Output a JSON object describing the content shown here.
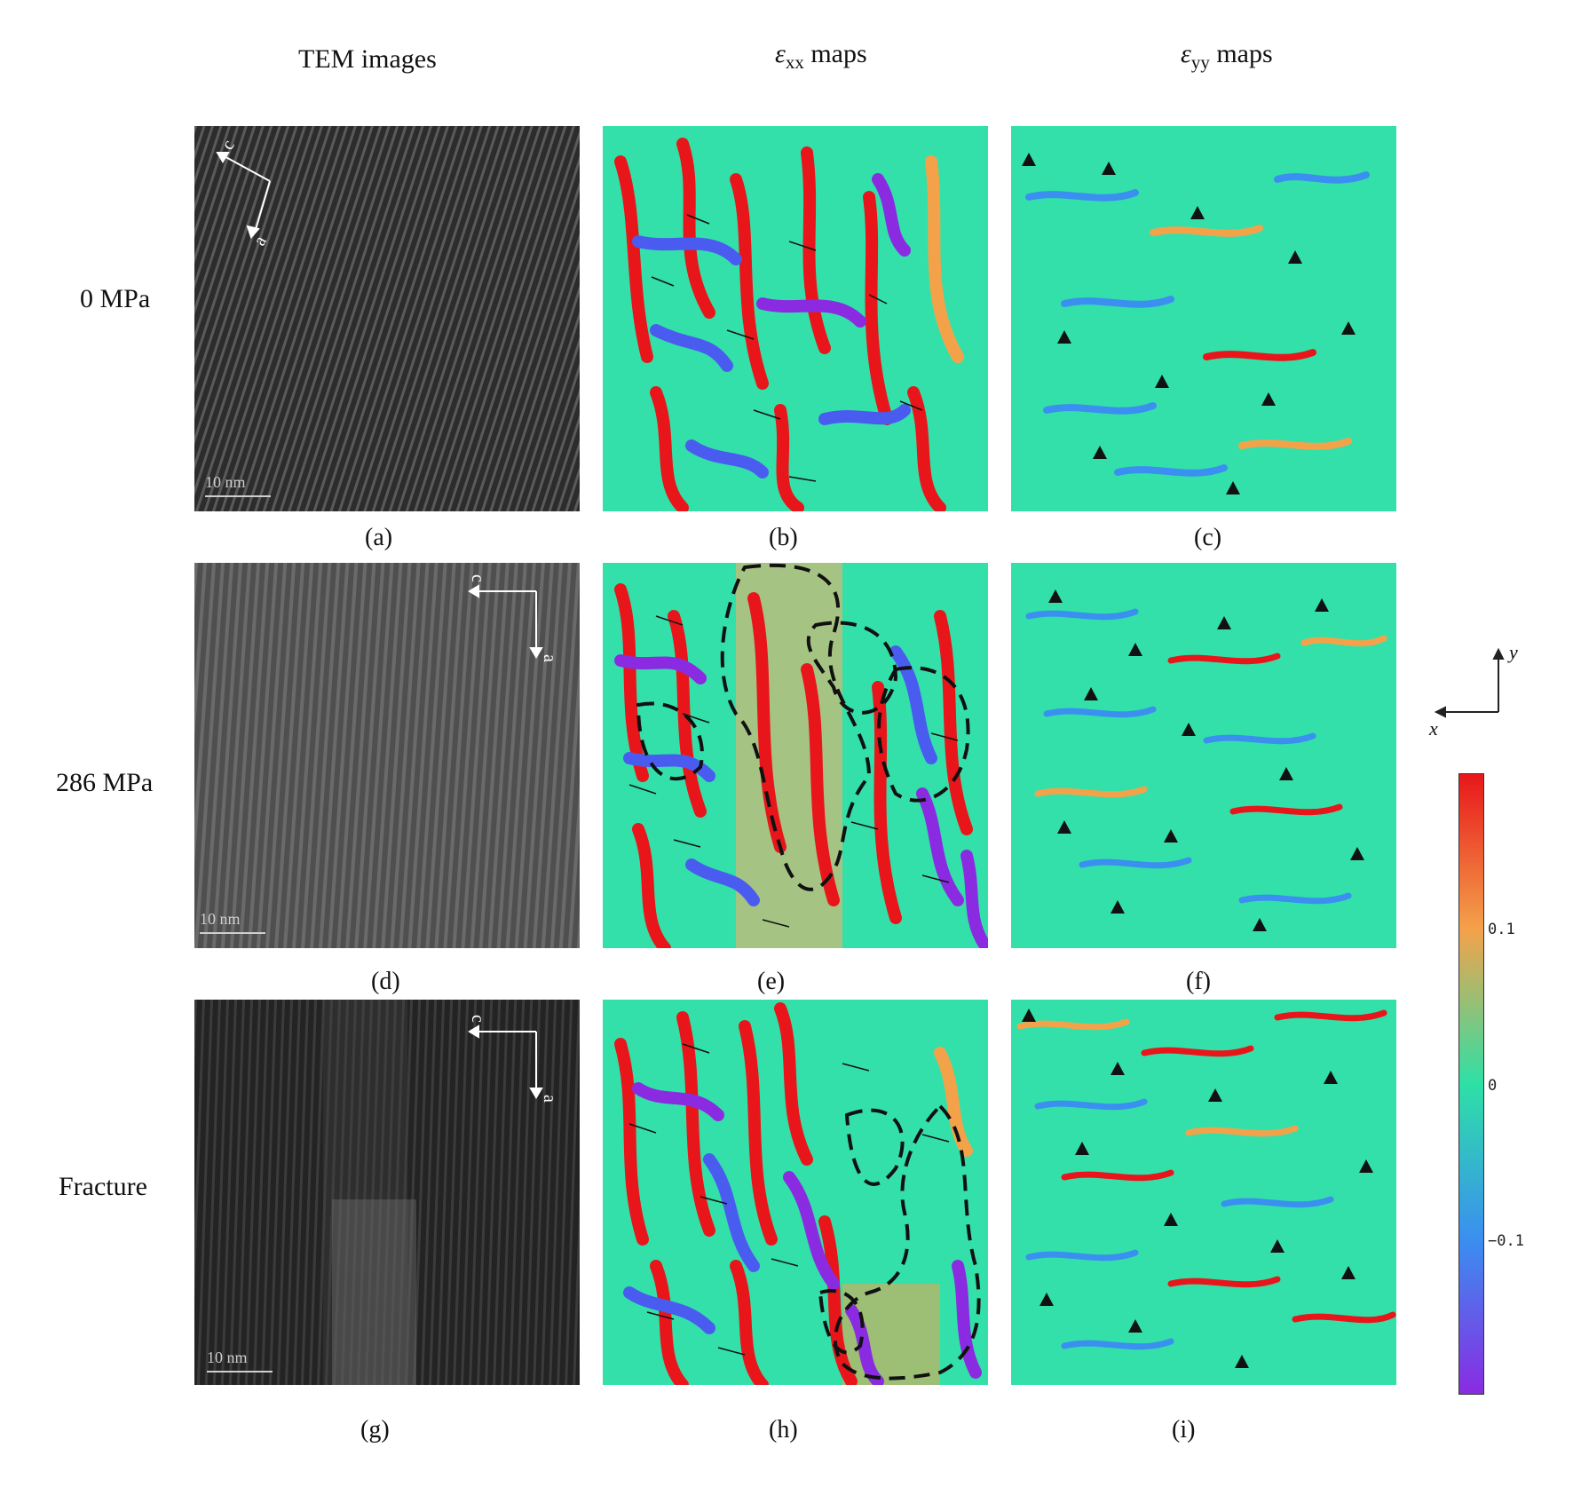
{
  "column_headers": {
    "tem": "TEM images",
    "exx_symbol": "ε",
    "exx_sub": "xx",
    "exx_word": "maps",
    "eyy_symbol": "ε",
    "eyy_sub": "yy",
    "eyy_word": "maps"
  },
  "row_labels": [
    "0 MPa",
    "286 MPa",
    "Fracture"
  ],
  "panel_labels": [
    "(a)",
    "(b)",
    "(c)",
    "(d)",
    "(e)",
    "(f)",
    "(g)",
    "(h)",
    "(i)"
  ],
  "tem_panels": [
    {
      "scale_bar": "10 nm",
      "axis_c": "c",
      "axis_a": "a"
    },
    {
      "scale_bar": "10 nm",
      "axis_c": "c",
      "axis_a": "a"
    },
    {
      "scale_bar": "10 nm",
      "axis_c": "c",
      "axis_a": "a"
    }
  ],
  "coordinate_axes": {
    "y": "y",
    "x": "x"
  },
  "colorbar": {
    "ticks": [
      "0.1",
      "0",
      "−0.1"
    ],
    "colors": [
      "#e8161b",
      "#f4a24a",
      "#2ee0a6",
      "#3a8ff0",
      "#8a2be2"
    ]
  }
}
